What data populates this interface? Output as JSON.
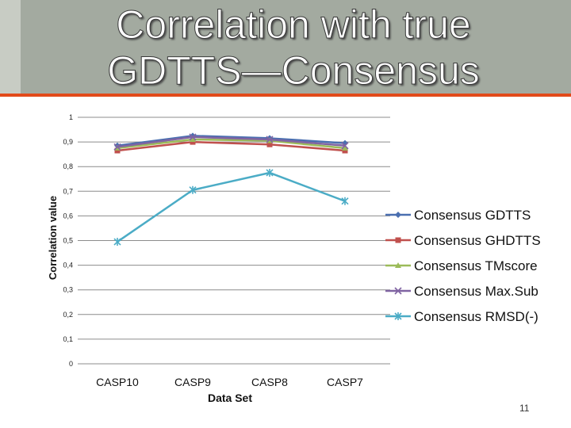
{
  "slide": {
    "title_line1": "Correlation with true",
    "title_line2": "GDTTS—Consensus",
    "page_number": "11",
    "colors": {
      "title_band": "#a3aaa0",
      "accent": "#e24a1a"
    }
  },
  "chart_data": {
    "type": "line",
    "title": "",
    "xlabel": "Data Set",
    "ylabel": "Correlation value",
    "categories": [
      "CASP10",
      "CASP9",
      "CASP8",
      "CASP7"
    ],
    "ylim": [
      0,
      1
    ],
    "y_ticks": [
      {
        "value": 0,
        "label": "0"
      },
      {
        "value": 0.1,
        "label": "0,1"
      },
      {
        "value": 0.2,
        "label": "0,2"
      },
      {
        "value": 0.3,
        "label": "0,3"
      },
      {
        "value": 0.4,
        "label": "0,4"
      },
      {
        "value": 0.5,
        "label": "0,5"
      },
      {
        "value": 0.6,
        "label": "0,6"
      },
      {
        "value": 0.7,
        "label": "0,7"
      },
      {
        "value": 0.8,
        "label": "0,8"
      },
      {
        "value": 0.9,
        "label": "0,9"
      },
      {
        "value": 1,
        "label": "1"
      }
    ],
    "grid": true,
    "legend_position": "right",
    "series": [
      {
        "name": "Consensus GDTTS",
        "color": "#4a6fb0",
        "marker": "diamond",
        "values": [
          0.885,
          0.925,
          0.915,
          0.895
        ]
      },
      {
        "name": "Consensus GHDTTS",
        "color": "#c0504d",
        "marker": "square",
        "values": [
          0.865,
          0.9,
          0.89,
          0.865
        ]
      },
      {
        "name": "Consensus TMscore",
        "color": "#9bbb59",
        "marker": "triangle",
        "values": [
          0.875,
          0.91,
          0.905,
          0.875
        ]
      },
      {
        "name": "Consensus Max.Sub",
        "color": "#8064a2",
        "marker": "x",
        "values": [
          0.88,
          0.92,
          0.91,
          0.885
        ]
      },
      {
        "name": "Consensus RMSD(-)",
        "color": "#4bacc6",
        "marker": "star",
        "values": [
          0.495,
          0.705,
          0.775,
          0.66
        ]
      }
    ]
  }
}
